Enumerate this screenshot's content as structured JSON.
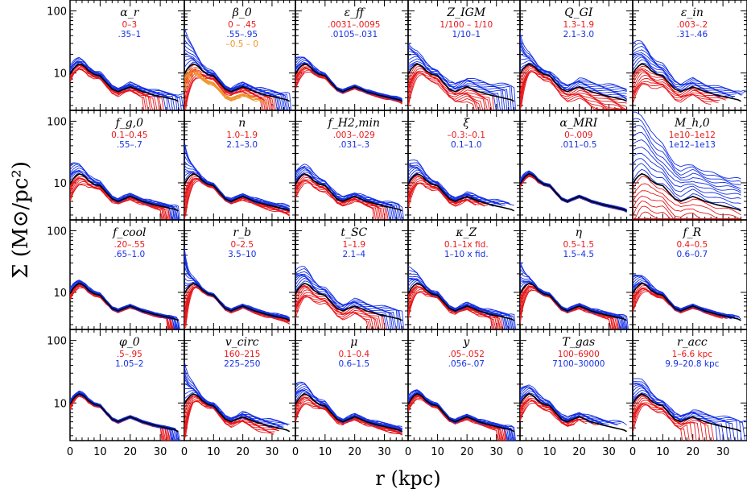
{
  "figure": {
    "xlabel": "r (kpc)",
    "ylabel": "Σ (M⊙/pc²)",
    "x_ticks": [
      "0",
      "10",
      "20",
      "30"
    ],
    "y_ticks": [
      "10",
      "100"
    ],
    "colors": {
      "low": "#e8171b",
      "high": "#1530e6",
      "extra": "#f09328",
      "fiducial": "#000000"
    }
  },
  "chart_data": {
    "type": "line",
    "grid": "4 rows x 6 columns of panels, shared axes",
    "xlim": [
      0,
      38
    ],
    "ylim": [
      2.5,
      150
    ],
    "yscale": "log",
    "xlabel": "r (kpc)",
    "ylabel": "Σ (M⊙/pc²)",
    "fiducial_profile": {
      "x": [
        0,
        1,
        2,
        3,
        4,
        5,
        6,
        8,
        10,
        12,
        14,
        16,
        18,
        20,
        22,
        24,
        26,
        28,
        30,
        32,
        34,
        35,
        36
      ],
      "y": [
        9.5,
        11.5,
        13,
        14,
        13.5,
        12.5,
        11,
        9.5,
        9,
        7,
        5.5,
        5,
        5.5,
        6,
        5.5,
        5,
        4.7,
        4.4,
        4.2,
        4,
        3.8,
        3.7,
        3.5
      ]
    },
    "panels": [
      {
        "title": "α_r",
        "ranges": [
          "0–3",
          ".35–1"
        ]
      },
      {
        "title": "β_0",
        "ranges": [
          "0 – .45",
          ".55–.95",
          "–0.5 – 0"
        ]
      },
      {
        "title": "ε_ff",
        "ranges": [
          ".0031–.0095",
          ".0105–.031"
        ]
      },
      {
        "title": "Z_IGM",
        "ranges": [
          "1/100 – 1/10",
          "1/10–1"
        ]
      },
      {
        "title": "Q_GI",
        "ranges": [
          "1.3–1.9",
          "2.1–3.0"
        ]
      },
      {
        "title": "ε_in",
        "ranges": [
          ".003–.2",
          ".31–.46"
        ]
      },
      {
        "title": "f_g,0",
        "ranges": [
          "0.1–0.45",
          ".55–.7"
        ]
      },
      {
        "title": "n",
        "ranges": [
          "1.0–1.9",
          "2.1–3.0"
        ]
      },
      {
        "title": "f_H2,min",
        "ranges": [
          ".003–.029",
          ".031–.3"
        ]
      },
      {
        "title": "ξ",
        "ranges": [
          "–0.3:–0.1",
          "0.1–1.0"
        ]
      },
      {
        "title": "α_MRI",
        "ranges": [
          "0–.009",
          ".011–0.5"
        ]
      },
      {
        "title": "M_h,0",
        "ranges": [
          "1e10–1e12",
          "1e12–1e13"
        ]
      },
      {
        "title": "f_cool",
        "ranges": [
          ".20–.55",
          ".65–1.0"
        ]
      },
      {
        "title": "r_b",
        "ranges": [
          "0–2.5",
          "3.5–10"
        ]
      },
      {
        "title": "t_SC",
        "ranges": [
          "1–1.9",
          "2.1–4"
        ]
      },
      {
        "title": "κ_Z",
        "ranges": [
          "0.1–1x fid.",
          "1–10 x fid."
        ]
      },
      {
        "title": "η",
        "ranges": [
          "0.5–1.5",
          "1.5–4.5"
        ]
      },
      {
        "title": "f_R",
        "ranges": [
          "0.4–0.5",
          "0.6–0.7"
        ]
      },
      {
        "title": "φ_0",
        "ranges": [
          ".5–.95",
          "1.05–2"
        ]
      },
      {
        "title": "v_circ",
        "ranges": [
          "160–215",
          "225–250"
        ]
      },
      {
        "title": "μ",
        "ranges": [
          "0.1–0.4",
          "0.6–1.5"
        ]
      },
      {
        "title": "y",
        "ranges": [
          ".05–.052",
          ".056–.07"
        ]
      },
      {
        "title": "T_gas",
        "ranges": [
          "100–6900",
          "7100–30000"
        ]
      },
      {
        "title": "r_acc",
        "ranges": [
          "1–6.6 kpc",
          "9.9–20.8 kpc"
        ]
      }
    ]
  }
}
